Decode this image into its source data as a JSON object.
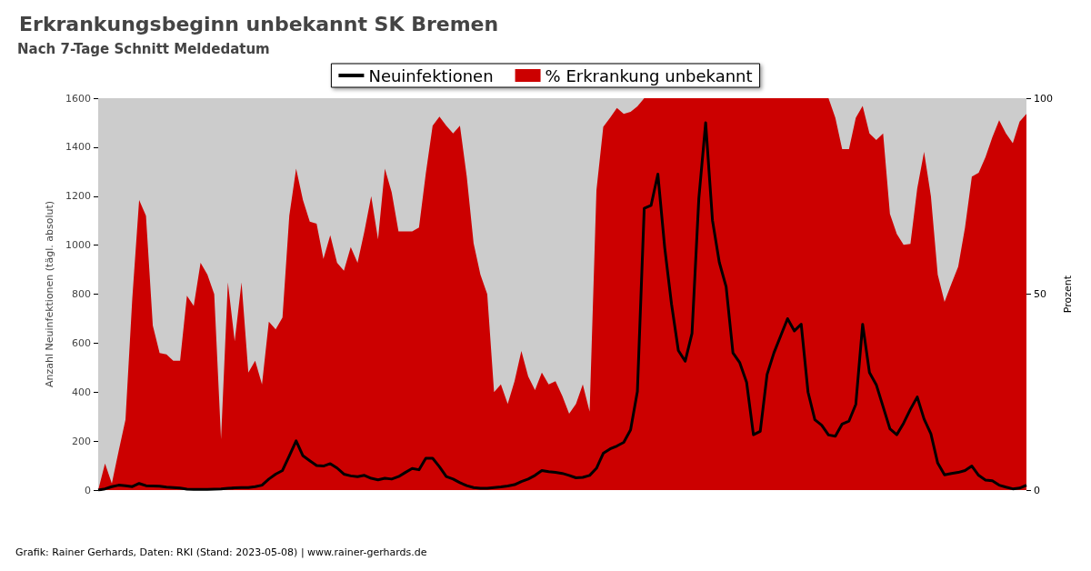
{
  "chart_data": {
    "type": "line",
    "title": "Erkrankungsbeginn unbekannt SK Bremen",
    "subtitle": "Nach 7-Tage Schnitt Meldedatum",
    "ylabel": "Anzahl Neuinfektionen (tägl. absolut)",
    "y2label": "Prozent",
    "annotations": [
      "Grafik: Rainer Gerhards, Daten: RKI (Stand: 2023-05-08) | www.rainer-gerhards.de"
    ],
    "categories": [
      null,
      null,
      null,
      null,
      null,
      null,
      null,
      null,
      null,
      null,
      null,
      null,
      null,
      null,
      null,
      null,
      null,
      null,
      null,
      null,
      null,
      null,
      null,
      null,
      null,
      null,
      null,
      null,
      null,
      null,
      null,
      null,
      null,
      null,
      null,
      null,
      null,
      null,
      null,
      null,
      null,
      null,
      null,
      null,
      null,
      null,
      null,
      null,
      null,
      null,
      null,
      null,
      null,
      null,
      null,
      null,
      null,
      null,
      null,
      null,
      null,
      null,
      null,
      null,
      null,
      null,
      null,
      null,
      null,
      null,
      null,
      null,
      null,
      null,
      null,
      null,
      null,
      null,
      null,
      null,
      null,
      null,
      null,
      null,
      null,
      null,
      null,
      null,
      null,
      null,
      null,
      null,
      null,
      null,
      null,
      null,
      null,
      null,
      null,
      null,
      null,
      null,
      null,
      null,
      null,
      null,
      null,
      null,
      null,
      null,
      null,
      null,
      null,
      null,
      null,
      null,
      null,
      null,
      null,
      null,
      null,
      null,
      null,
      null,
      null,
      null,
      null,
      null,
      null,
      null,
      null,
      null,
      null,
      null,
      null,
      null,
      null
    ],
    "series": [
      {
        "name": "Neuinfektionen",
        "color": "#000000",
        "values": [
          0,
          5,
          14,
          20,
          18,
          14,
          27,
          18,
          17,
          16,
          12,
          10,
          8,
          4,
          3,
          3,
          3,
          4,
          5,
          7,
          9,
          10,
          10,
          14,
          20,
          45,
          65,
          80,
          140,
          201,
          140,
          120,
          100,
          98,
          108,
          90,
          65,
          58,
          55,
          60,
          48,
          42,
          48,
          45,
          55,
          72,
          88,
          83,
          130,
          130,
          95,
          55,
          45,
          30,
          18,
          10,
          7,
          7,
          10,
          13,
          17,
          22,
          35,
          45,
          60,
          80,
          75,
          72,
          68,
          60,
          50,
          52,
          60,
          89,
          150,
          168,
          180,
          195,
          246,
          403,
          1150,
          1162,
          1290,
          990,
          759,
          570,
          526,
          640,
          1190,
          1500,
          1101,
          930,
          830,
          560,
          520,
          440,
          226,
          240,
          472,
          560,
          630,
          700,
          650,
          677,
          400,
          287,
          265,
          225,
          220,
          270,
          282,
          350,
          677,
          480,
          430,
          340,
          250,
          226,
          273,
          330,
          380,
          290,
          230,
          110,
          62,
          68,
          72,
          80,
          98,
          60,
          41,
          38,
          20,
          12,
          5,
          8,
          20
        ]
      },
      {
        "name": "% Erkrankung unbekannt",
        "type": "area",
        "axis": "y2",
        "color": "#cc0000",
        "values": [
          0,
          6.8,
          1.7,
          10,
          18,
          49,
          74,
          70,
          42,
          35,
          34.6,
          33,
          33,
          49.6,
          47,
          58,
          55,
          50,
          13,
          53,
          38,
          53,
          30,
          33,
          27,
          43,
          41,
          44,
          70,
          82,
          74,
          68.5,
          68,
          59,
          65,
          58,
          56,
          62,
          58,
          66,
          75,
          64,
          82,
          76,
          66,
          66,
          66,
          67,
          80.8,
          93,
          95.3,
          93,
          91,
          93,
          80,
          63,
          55,
          50,
          25,
          27,
          22,
          27.8,
          35.5,
          29,
          25.5,
          30,
          27,
          27.8,
          24,
          19.5,
          22,
          27,
          20,
          76.5,
          92.7,
          95,
          97.5,
          96,
          96.5,
          97.9,
          100,
          100,
          100,
          100,
          100,
          100,
          100,
          100,
          100,
          100,
          100,
          100,
          100,
          100,
          100,
          100,
          100,
          100,
          100,
          100,
          100,
          100,
          100,
          100,
          100,
          100,
          100,
          100,
          95,
          87,
          87,
          95,
          98,
          91,
          89.3,
          91,
          70.5,
          65.4,
          62.6,
          62.8,
          77,
          86.3,
          75,
          55,
          48,
          52.6,
          57,
          67,
          80,
          81,
          85,
          90,
          94.4,
          91,
          88.5,
          94,
          96
        ]
      }
    ],
    "ylim": [
      0,
      1600
    ],
    "yticks": [
      0,
      200,
      400,
      600,
      800,
      1000,
      1200,
      1400,
      1600
    ],
    "y2lim": [
      0,
      100
    ],
    "y2ticks": [
      0,
      50,
      100
    ],
    "legend": "top",
    "grid": false,
    "marker": "none",
    "line_style": "solid"
  }
}
